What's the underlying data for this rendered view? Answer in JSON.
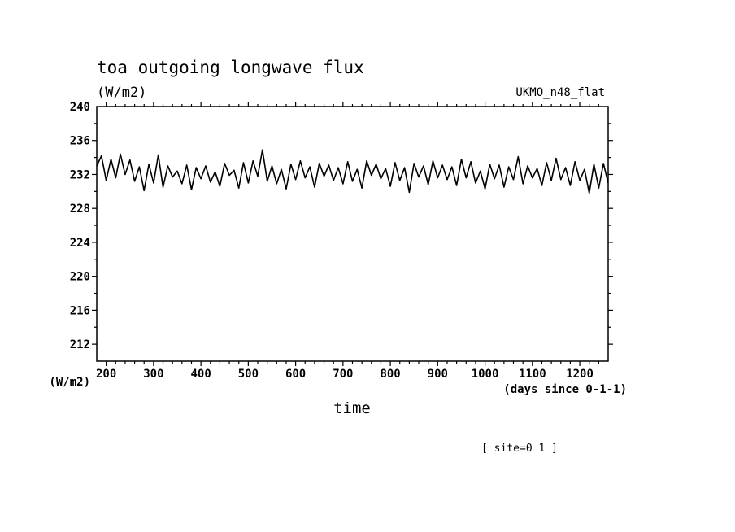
{
  "chart_data": {
    "type": "line",
    "title": "toa outgoing longwave flux",
    "units_label": "(W/m2)",
    "model_label": "UKMO_n48_flat",
    "ylabel": "(W/m2)",
    "xlabel": "time",
    "x_units_label": "(days since 0-1-1)",
    "site_label": "[ site=0 1 ]",
    "xlim": [
      180,
      1260
    ],
    "ylim": [
      210,
      240
    ],
    "x_tick_labels": [
      "200",
      "300",
      "400",
      "500",
      "600",
      "700",
      "800",
      "900",
      "1000",
      "1100",
      "1200"
    ],
    "y_tick_labels": [
      "212",
      "216",
      "220",
      "224",
      "228",
      "232",
      "236",
      "240"
    ],
    "series": [
      {
        "x": [
          180,
          190,
          200,
          210,
          220,
          230,
          240,
          250,
          260,
          270,
          280,
          290,
          300,
          310,
          320,
          330,
          340,
          350,
          360,
          370,
          380,
          390,
          400,
          410,
          420,
          430,
          440,
          450,
          460,
          470,
          480,
          490,
          500,
          510,
          520,
          530,
          540,
          550,
          560,
          570,
          580,
          590,
          600,
          610,
          620,
          630,
          640,
          650,
          660,
          670,
          680,
          690,
          700,
          710,
          720,
          730,
          740,
          750,
          760,
          770,
          780,
          790,
          800,
          810,
          820,
          830,
          840,
          850,
          860,
          870,
          880,
          890,
          900,
          910,
          920,
          930,
          940,
          950,
          960,
          970,
          980,
          990,
          1000,
          1010,
          1020,
          1030,
          1040,
          1050,
          1060,
          1070,
          1080,
          1090,
          1100,
          1110,
          1120,
          1130,
          1140,
          1150,
          1160,
          1170,
          1180,
          1190,
          1200,
          1210,
          1220,
          1230,
          1240,
          1250,
          1260
        ],
        "values": [
          233.0,
          234.2,
          231.3,
          233.8,
          231.6,
          234.4,
          232.0,
          233.7,
          231.2,
          232.9,
          230.1,
          233.2,
          231.0,
          234.3,
          230.5,
          233.0,
          231.7,
          232.4,
          230.9,
          233.1,
          230.2,
          232.8,
          231.5,
          233.0,
          231.1,
          232.3,
          230.6,
          233.3,
          231.9,
          232.5,
          230.4,
          233.4,
          231.0,
          233.6,
          231.8,
          234.9,
          231.2,
          233.0,
          230.9,
          232.6,
          230.3,
          233.2,
          231.4,
          233.6,
          231.6,
          232.9,
          230.5,
          233.3,
          231.8,
          233.1,
          231.3,
          232.8,
          230.9,
          233.5,
          231.2,
          232.6,
          230.4,
          233.6,
          231.9,
          233.2,
          231.5,
          232.7,
          230.6,
          233.4,
          231.3,
          232.8,
          229.9,
          233.3,
          231.7,
          233.0,
          230.8,
          233.6,
          231.6,
          233.1,
          231.4,
          232.9,
          230.7,
          233.8,
          231.6,
          233.5,
          231.0,
          232.4,
          230.3,
          233.2,
          231.5,
          233.1,
          230.5,
          232.9,
          231.4,
          234.1,
          230.9,
          233.0,
          231.6,
          232.7,
          230.7,
          233.4,
          231.3,
          233.9,
          231.4,
          232.8,
          230.7,
          233.5,
          231.3,
          232.6,
          229.8,
          233.2,
          230.4,
          233.3,
          231.0
        ]
      }
    ]
  }
}
